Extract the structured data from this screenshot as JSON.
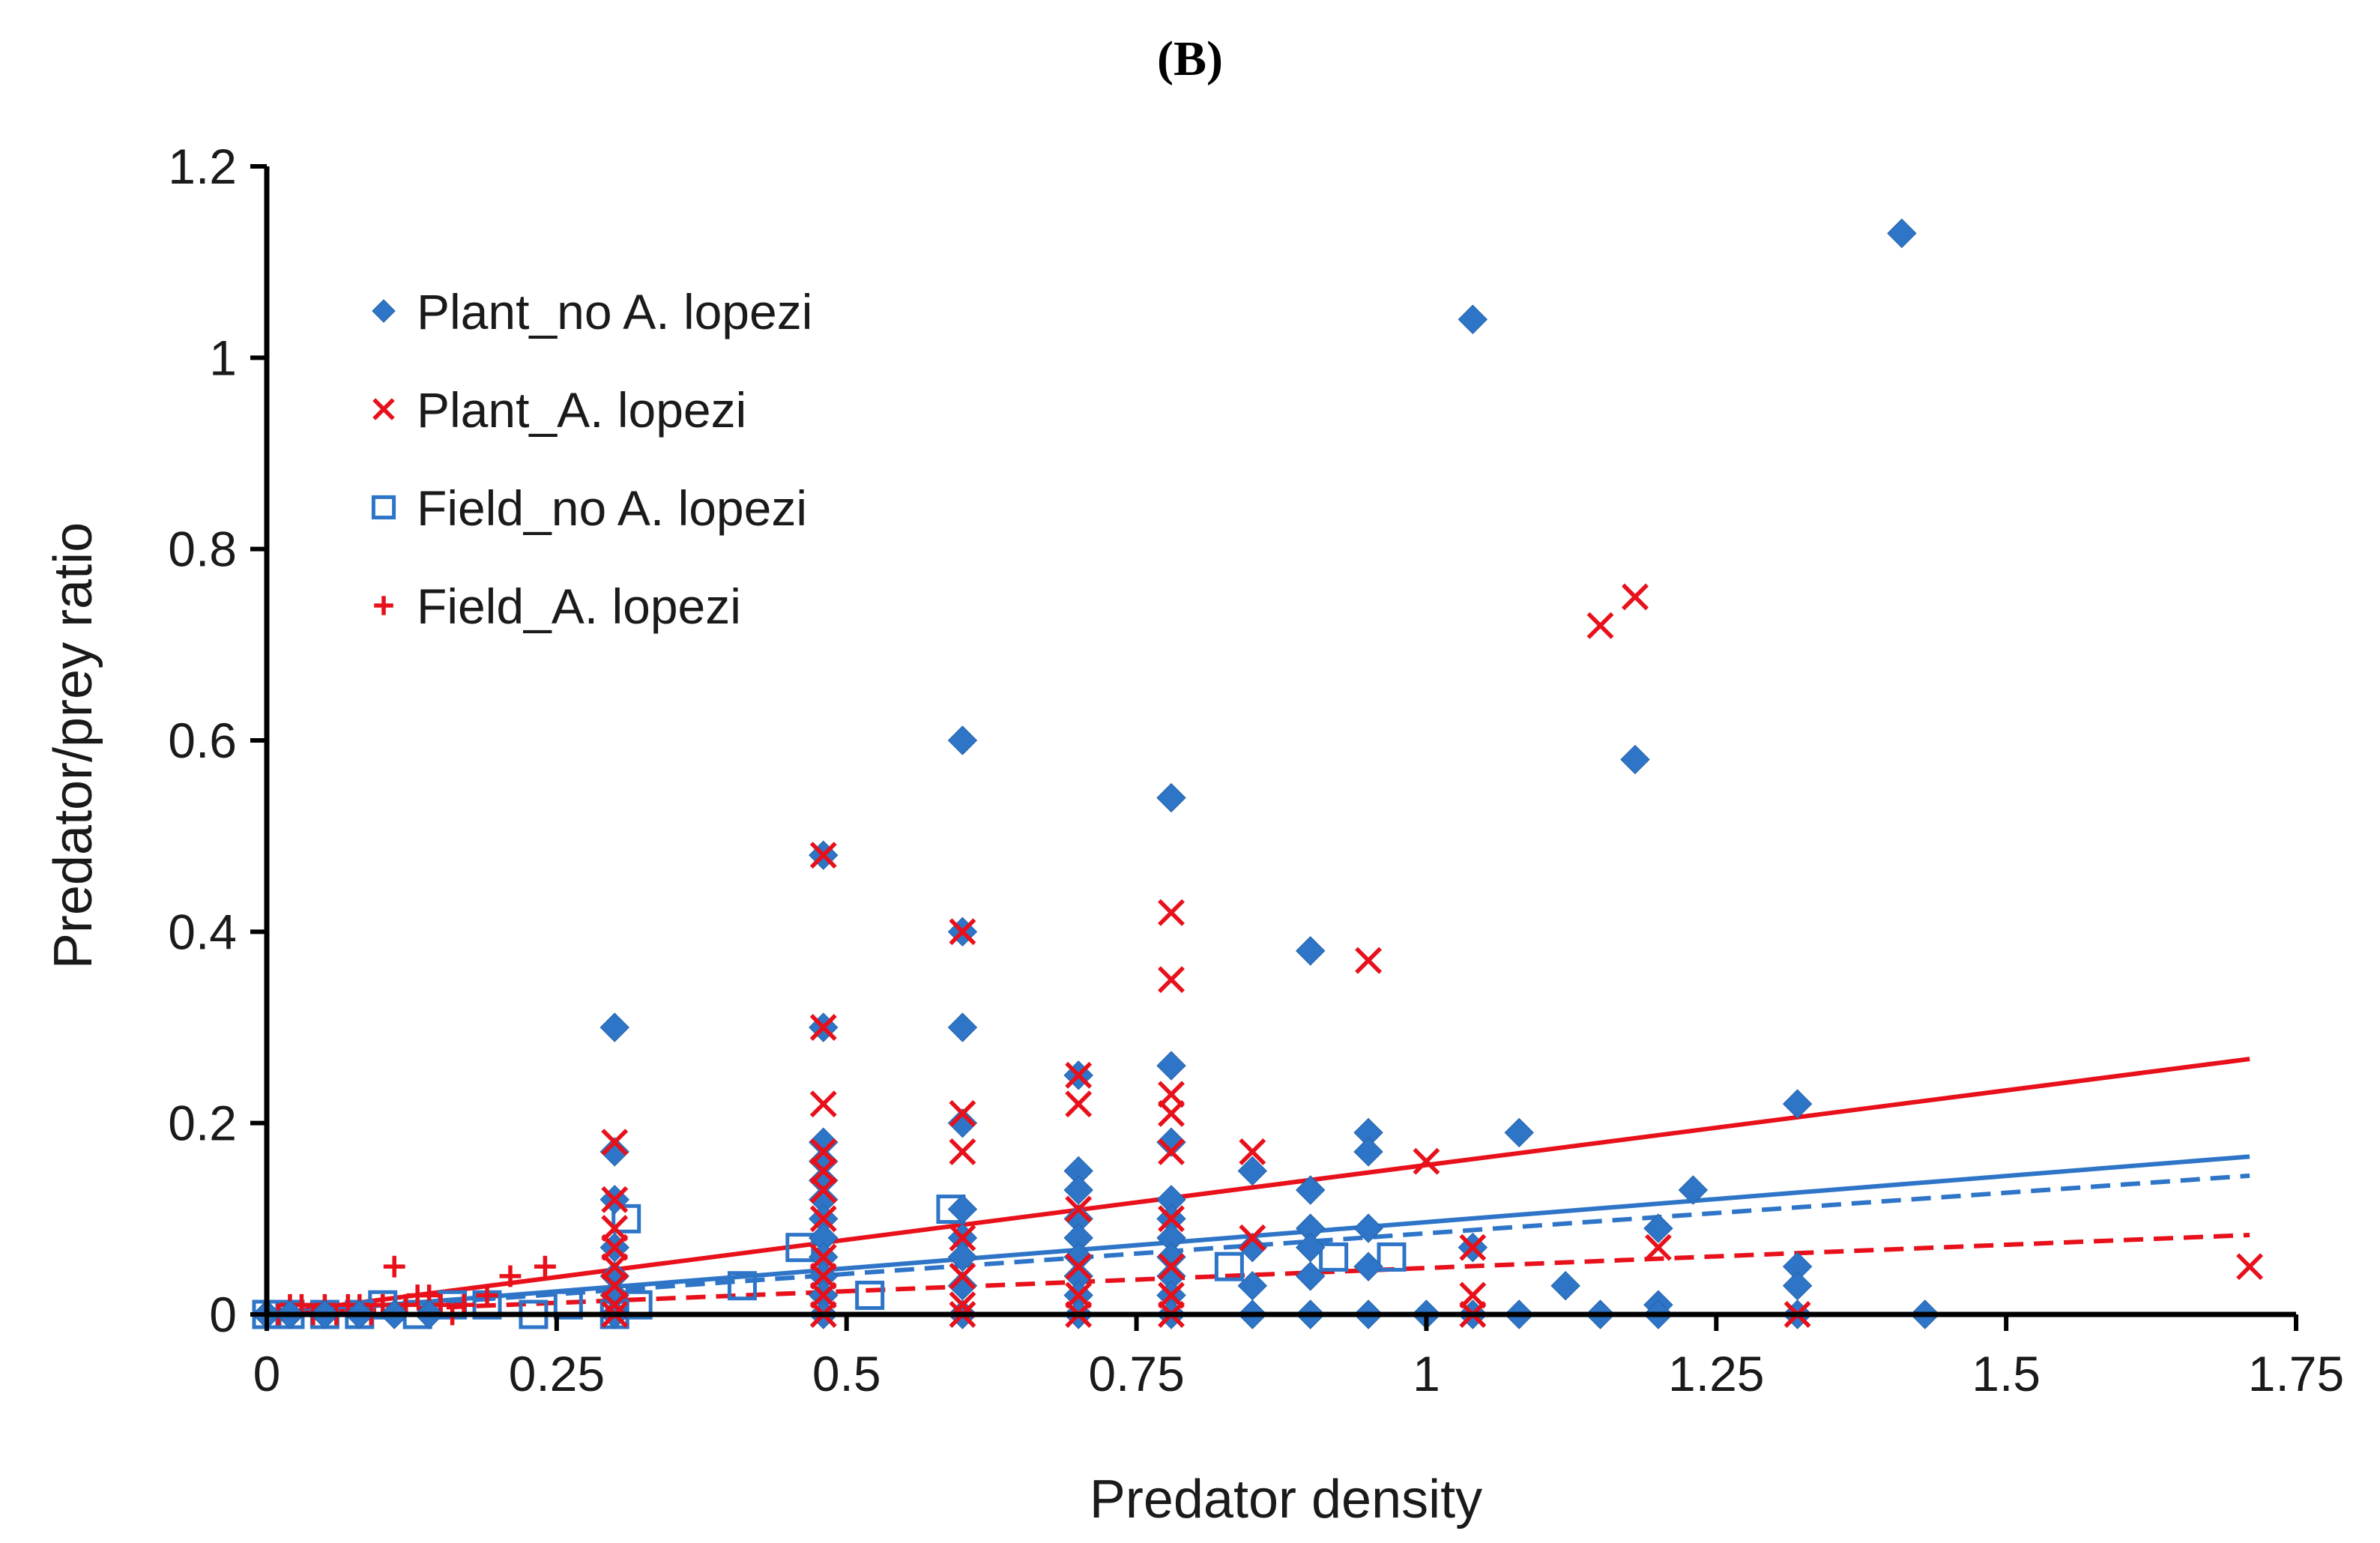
{
  "panel_label": "(B)",
  "colors": {
    "blue": "#2E75C8",
    "red": "#E8101A",
    "axis": "#000000"
  },
  "chart_data": {
    "type": "scatter",
    "xlabel": "Predator density",
    "ylabel": "Predator/prey ratio",
    "xlim": [
      0,
      1.75
    ],
    "ylim": [
      0,
      1.2
    ],
    "xticks": [
      0,
      0.25,
      0.5,
      0.75,
      1,
      1.25,
      1.5,
      1.75
    ],
    "xtick_labels": [
      "0",
      "0.25",
      "0.5",
      "0.75",
      "1",
      "1.25",
      "1.5",
      "1.75"
    ],
    "yticks": [
      0,
      0.2,
      0.4,
      0.6,
      0.8,
      1,
      1.2
    ],
    "ytick_labels": [
      "0",
      "0.2",
      "0.4",
      "0.6",
      "0.8",
      "1",
      "1.2"
    ],
    "grid": false,
    "legend_position": "top-left",
    "series": [
      {
        "name": "Plant_no A. lopezi",
        "marker": "diamond",
        "color": "#2E75C8",
        "points": [
          [
            0.0,
            0.0
          ],
          [
            0.02,
            0.0
          ],
          [
            0.05,
            0.0
          ],
          [
            0.08,
            0.0
          ],
          [
            0.11,
            0.0
          ],
          [
            0.14,
            0.0
          ],
          [
            0.3,
            0.3
          ],
          [
            0.3,
            0.17
          ],
          [
            0.3,
            0.12
          ],
          [
            0.3,
            0.07
          ],
          [
            0.3,
            0.04
          ],
          [
            0.3,
            0.02
          ],
          [
            0.3,
            0.0
          ],
          [
            0.48,
            0.48
          ],
          [
            0.48,
            0.3
          ],
          [
            0.48,
            0.18
          ],
          [
            0.48,
            0.16
          ],
          [
            0.48,
            0.14
          ],
          [
            0.48,
            0.12
          ],
          [
            0.48,
            0.1
          ],
          [
            0.48,
            0.08
          ],
          [
            0.48,
            0.06
          ],
          [
            0.48,
            0.04
          ],
          [
            0.48,
            0.02
          ],
          [
            0.48,
            0.0
          ],
          [
            0.6,
            0.6
          ],
          [
            0.6,
            0.4
          ],
          [
            0.6,
            0.3
          ],
          [
            0.6,
            0.2
          ],
          [
            0.6,
            0.11
          ],
          [
            0.6,
            0.08
          ],
          [
            0.6,
            0.06
          ],
          [
            0.6,
            0.03
          ],
          [
            0.6,
            0.0
          ],
          [
            0.7,
            0.25
          ],
          [
            0.7,
            0.15
          ],
          [
            0.7,
            0.13
          ],
          [
            0.7,
            0.1
          ],
          [
            0.7,
            0.08
          ],
          [
            0.7,
            0.06
          ],
          [
            0.7,
            0.04
          ],
          [
            0.7,
            0.02
          ],
          [
            0.7,
            0.0
          ],
          [
            0.78,
            0.54
          ],
          [
            0.78,
            0.26
          ],
          [
            0.78,
            0.18
          ],
          [
            0.78,
            0.12
          ],
          [
            0.78,
            0.1
          ],
          [
            0.78,
            0.08
          ],
          [
            0.78,
            0.06
          ],
          [
            0.78,
            0.04
          ],
          [
            0.78,
            0.02
          ],
          [
            0.78,
            0.0
          ],
          [
            0.85,
            0.15
          ],
          [
            0.85,
            0.07
          ],
          [
            0.85,
            0.03
          ],
          [
            0.85,
            0.0
          ],
          [
            0.9,
            0.38
          ],
          [
            0.9,
            0.13
          ],
          [
            0.9,
            0.09
          ],
          [
            0.9,
            0.07
          ],
          [
            0.9,
            0.04
          ],
          [
            0.9,
            0.0
          ],
          [
            0.95,
            0.19
          ],
          [
            0.95,
            0.17
          ],
          [
            0.95,
            0.09
          ],
          [
            0.95,
            0.05
          ],
          [
            0.95,
            0.0
          ],
          [
            1.0,
            0.0
          ],
          [
            1.04,
            1.04
          ],
          [
            1.04,
            0.07
          ],
          [
            1.04,
            0.0
          ],
          [
            1.08,
            0.19
          ],
          [
            1.08,
            0.0
          ],
          [
            1.12,
            0.03
          ],
          [
            1.15,
            0.0
          ],
          [
            1.18,
            0.58
          ],
          [
            1.2,
            0.09
          ],
          [
            1.2,
            0.01
          ],
          [
            1.2,
            0.0
          ],
          [
            1.23,
            0.13
          ],
          [
            1.32,
            0.22
          ],
          [
            1.32,
            0.05
          ],
          [
            1.32,
            0.03
          ],
          [
            1.32,
            0.0
          ],
          [
            1.41,
            1.13
          ],
          [
            1.43,
            0.0
          ]
        ]
      },
      {
        "name": "Plant_A. lopezi",
        "marker": "x",
        "color": "#E8101A",
        "points": [
          [
            0.3,
            0.18
          ],
          [
            0.3,
            0.12
          ],
          [
            0.3,
            0.09
          ],
          [
            0.3,
            0.07
          ],
          [
            0.3,
            0.05
          ],
          [
            0.3,
            0.03
          ],
          [
            0.3,
            0.01
          ],
          [
            0.3,
            0.0
          ],
          [
            0.48,
            0.48
          ],
          [
            0.48,
            0.3
          ],
          [
            0.48,
            0.22
          ],
          [
            0.48,
            0.17
          ],
          [
            0.48,
            0.15
          ],
          [
            0.48,
            0.13
          ],
          [
            0.48,
            0.1
          ],
          [
            0.48,
            0.06
          ],
          [
            0.48,
            0.04
          ],
          [
            0.48,
            0.02
          ],
          [
            0.48,
            0.0
          ],
          [
            0.6,
            0.4
          ],
          [
            0.6,
            0.21
          ],
          [
            0.6,
            0.17
          ],
          [
            0.6,
            0.08
          ],
          [
            0.6,
            0.04
          ],
          [
            0.6,
            0.01
          ],
          [
            0.6,
            0.0
          ],
          [
            0.7,
            0.25
          ],
          [
            0.7,
            0.22
          ],
          [
            0.7,
            0.11
          ],
          [
            0.7,
            0.05
          ],
          [
            0.7,
            0.02
          ],
          [
            0.7,
            0.0
          ],
          [
            0.78,
            0.42
          ],
          [
            0.78,
            0.35
          ],
          [
            0.78,
            0.23
          ],
          [
            0.78,
            0.21
          ],
          [
            0.78,
            0.17
          ],
          [
            0.78,
            0.1
          ],
          [
            0.78,
            0.05
          ],
          [
            0.78,
            0.02
          ],
          [
            0.78,
            0.0
          ],
          [
            0.85,
            0.17
          ],
          [
            0.85,
            0.08
          ],
          [
            0.95,
            0.37
          ],
          [
            1.0,
            0.16
          ],
          [
            1.04,
            0.07
          ],
          [
            1.04,
            0.02
          ],
          [
            1.04,
            0.0
          ],
          [
            1.15,
            0.72
          ],
          [
            1.18,
            0.75
          ],
          [
            1.2,
            0.07
          ],
          [
            1.32,
            0.0
          ],
          [
            1.71,
            0.05
          ]
        ]
      },
      {
        "name": "Field_no A. lopezi",
        "marker": "square",
        "color": "#2E75C8",
        "points": [
          [
            0.0,
            0.0
          ],
          [
            0.02,
            0.0
          ],
          [
            0.05,
            0.0
          ],
          [
            0.08,
            0.0
          ],
          [
            0.1,
            0.01
          ],
          [
            0.13,
            0.0
          ],
          [
            0.16,
            0.01
          ],
          [
            0.19,
            0.01
          ],
          [
            0.23,
            0.0
          ],
          [
            0.26,
            0.01
          ],
          [
            0.3,
            0.0
          ],
          [
            0.31,
            0.1
          ],
          [
            0.32,
            0.01
          ],
          [
            0.41,
            0.03
          ],
          [
            0.46,
            0.07
          ],
          [
            0.52,
            0.02
          ],
          [
            0.59,
            0.11
          ],
          [
            0.83,
            0.05
          ],
          [
            0.92,
            0.06
          ],
          [
            0.97,
            0.06
          ]
        ]
      },
      {
        "name": "Field_A. lopezi",
        "marker": "plus",
        "color": "#E8101A",
        "points": [
          [
            0.0,
            0.0
          ],
          [
            0.01,
            0.0
          ],
          [
            0.02,
            0.01
          ],
          [
            0.03,
            0.01
          ],
          [
            0.04,
            0.0
          ],
          [
            0.05,
            0.01
          ],
          [
            0.06,
            0.0
          ],
          [
            0.07,
            0.01
          ],
          [
            0.08,
            0.01
          ],
          [
            0.09,
            0.0
          ],
          [
            0.1,
            0.01
          ],
          [
            0.11,
            0.05
          ],
          [
            0.12,
            0.01
          ],
          [
            0.13,
            0.02
          ],
          [
            0.14,
            0.02
          ],
          [
            0.15,
            0.01
          ],
          [
            0.16,
            0.0
          ],
          [
            0.17,
            0.01
          ],
          [
            0.19,
            0.02
          ],
          [
            0.21,
            0.04
          ],
          [
            0.24,
            0.05
          ]
        ]
      }
    ],
    "trendlines": [
      {
        "series": "Plant_A. lopezi",
        "style": "solid",
        "color": "#E8101A",
        "x": [
          0,
          1.71
        ],
        "y": [
          0.0,
          0.267
        ]
      },
      {
        "series": "Plant_no A. lopezi",
        "style": "solid",
        "color": "#2E75C8",
        "x": [
          0,
          1.71
        ],
        "y": [
          0.0,
          0.165
        ]
      },
      {
        "series": "Field_no A. lopezi",
        "style": "dashed",
        "color": "#2E75C8",
        "x": [
          0,
          1.71
        ],
        "y": [
          0.0,
          0.145
        ]
      },
      {
        "series": "Field_A. lopezi",
        "style": "dashed",
        "color": "#E8101A",
        "x": [
          0,
          1.71
        ],
        "y": [
          0.0,
          0.083
        ]
      }
    ]
  }
}
